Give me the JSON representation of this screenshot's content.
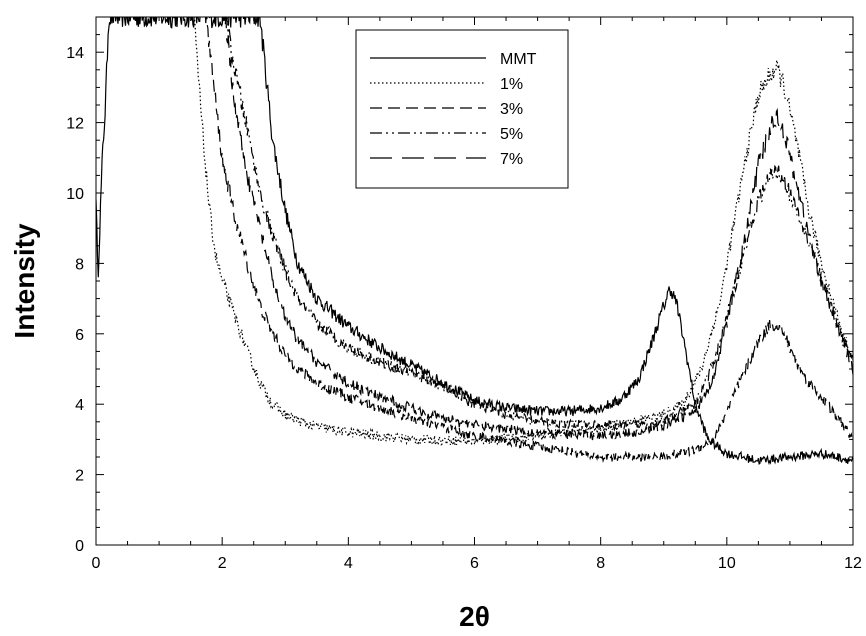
{
  "chart_data": {
    "type": "line",
    "xlabel": "2θ",
    "ylabel": "Intensity",
    "xlim": [
      0,
      12
    ],
    "ylim": [
      0,
      15
    ],
    "x_ticks": [
      0,
      2,
      4,
      6,
      8,
      10,
      12
    ],
    "y_ticks": [
      0,
      2,
      4,
      6,
      8,
      10,
      12,
      14
    ],
    "grid": false,
    "legend_position": "top-center",
    "series": [
      {
        "name": "MMT",
        "dash": "solid",
        "x": [
          0.0,
          0.03,
          0.06,
          0.1,
          0.15,
          0.2,
          2.6,
          2.8,
          3.0,
          3.2,
          3.5,
          4.0,
          4.5,
          5.0,
          5.5,
          6.0,
          6.5,
          7.0,
          7.5,
          8.0,
          8.3,
          8.6,
          8.8,
          9.0,
          9.1,
          9.2,
          9.35,
          9.5,
          9.7,
          10.0,
          10.5,
          11.0,
          11.5,
          12.0
        ],
        "y": [
          10.0,
          7.5,
          9.0,
          11.0,
          12.5,
          15.0,
          15.0,
          11.5,
          9.5,
          8.0,
          7.0,
          6.2,
          5.6,
          5.1,
          4.6,
          4.1,
          3.9,
          3.8,
          3.8,
          3.9,
          4.1,
          4.7,
          5.7,
          6.8,
          7.3,
          6.9,
          5.5,
          4.0,
          3.0,
          2.6,
          2.4,
          2.5,
          2.6,
          2.4
        ]
      },
      {
        "name": "1%",
        "dash": "dotted",
        "x": [
          1.55,
          1.7,
          1.8,
          1.9,
          2.0,
          2.1,
          2.2,
          2.4,
          2.6,
          2.8,
          3.0,
          3.4,
          4.0,
          5.0,
          6.0,
          7.0,
          8.0,
          8.5,
          9.0,
          9.3,
          9.6,
          9.9,
          10.1,
          10.3,
          10.5,
          10.7,
          10.8,
          10.9,
          11.1,
          11.3,
          11.5,
          11.8,
          12.0
        ],
        "y": [
          15.0,
          11.5,
          9.5,
          8.2,
          7.5,
          7.0,
          6.5,
          5.5,
          4.6,
          4.0,
          3.7,
          3.4,
          3.2,
          3.0,
          2.95,
          3.1,
          3.3,
          3.5,
          3.7,
          4.0,
          5.0,
          7.0,
          9.0,
          11.0,
          12.8,
          13.4,
          13.5,
          13.1,
          11.5,
          9.5,
          8.0,
          6.2,
          5.2
        ]
      },
      {
        "name": "3%",
        "dash": "dashed",
        "x": [
          1.75,
          1.9,
          2.0,
          2.2,
          2.4,
          2.6,
          2.8,
          3.0,
          3.2,
          3.5,
          4.0,
          4.5,
          5.0,
          6.0,
          7.0,
          8.0,
          9.0,
          9.5,
          9.8,
          10.0,
          10.3,
          10.5,
          10.7,
          10.8,
          10.9,
          11.1,
          11.3,
          11.5,
          11.8,
          12.0
        ],
        "y": [
          15.0,
          12.5,
          11.0,
          9.3,
          8.0,
          6.8,
          6.0,
          5.4,
          5.0,
          4.6,
          4.2,
          3.9,
          3.6,
          3.1,
          2.8,
          2.5,
          2.5,
          2.7,
          3.0,
          3.8,
          5.0,
          5.8,
          6.3,
          6.2,
          6.0,
          5.2,
          4.6,
          4.2,
          3.5,
          3.0
        ]
      },
      {
        "name": "5%",
        "dash": "dashdotdot",
        "x": [
          2.05,
          2.2,
          2.4,
          2.6,
          2.8,
          3.0,
          3.2,
          3.5,
          4.0,
          4.5,
          5.0,
          5.5,
          6.0,
          6.5,
          7.0,
          8.0,
          8.5,
          9.0,
          9.5,
          9.8,
          10.0,
          10.3,
          10.5,
          10.7,
          10.8,
          10.9,
          11.1,
          11.3,
          11.5,
          11.8,
          12.0
        ],
        "y": [
          15.0,
          13.5,
          11.8,
          10.0,
          8.8,
          7.8,
          7.0,
          6.3,
          5.6,
          5.2,
          4.9,
          4.5,
          4.0,
          3.7,
          3.5,
          3.4,
          3.4,
          3.5,
          4.0,
          5.2,
          6.5,
          8.5,
          9.8,
          10.5,
          10.6,
          10.4,
          9.5,
          8.6,
          7.6,
          6.0,
          5.2
        ]
      },
      {
        "name": "7%",
        "dash": "longdash",
        "x": [
          2.05,
          2.2,
          2.4,
          2.6,
          2.8,
          3.0,
          3.2,
          3.5,
          4.0,
          4.5,
          5.0,
          5.5,
          6.0,
          7.0,
          8.0,
          8.5,
          9.0,
          9.5,
          9.8,
          10.0,
          10.3,
          10.5,
          10.7,
          10.8,
          10.9,
          11.1,
          11.3,
          11.5,
          11.8,
          12.0
        ],
        "y": [
          15.0,
          12.5,
          10.5,
          9.0,
          7.5,
          6.5,
          5.8,
          5.2,
          4.6,
          4.2,
          3.9,
          3.6,
          3.4,
          3.2,
          3.1,
          3.2,
          3.4,
          3.8,
          4.8,
          6.3,
          8.8,
          10.8,
          11.9,
          12.2,
          11.8,
          10.3,
          8.8,
          7.5,
          6.0,
          5.0
        ]
      }
    ]
  }
}
